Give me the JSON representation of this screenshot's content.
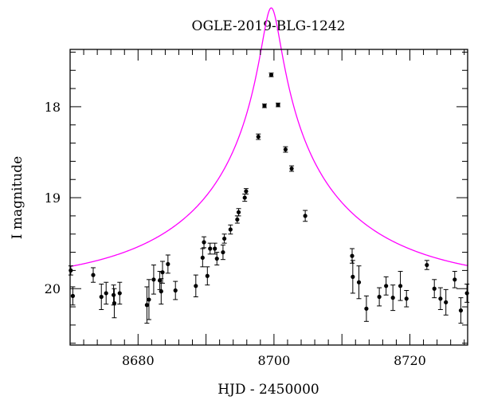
{
  "chart_data": {
    "type": "scatter",
    "title": "OGLE-2019-BLG-1242",
    "xlabel": "HJD - 2450000",
    "ylabel": "I magnitude",
    "xlim": [
      8670,
      8728.5
    ],
    "ylim": [
      20.62,
      17.37
    ],
    "y_inverted": true,
    "x_ticks": [
      8680,
      8700,
      8720
    ],
    "y_ticks": [
      18,
      19,
      20
    ],
    "grid": false,
    "legend": "none",
    "colors": {
      "points": "#000000",
      "model": "#ff00ff",
      "frame": "#000000"
    },
    "series": [
      {
        "type": "scatter_errorbar",
        "points": [
          [
            8670.1,
            19.8,
            0.05
          ],
          [
            8670.4,
            20.08,
            0.1
          ],
          [
            8673.4,
            19.85,
            0.08
          ],
          [
            8674.6,
            20.09,
            0.14
          ],
          [
            8675.3,
            20.05,
            0.12
          ],
          [
            8676.4,
            20.07,
            0.11
          ],
          [
            8676.5,
            20.16,
            0.16
          ],
          [
            8677.3,
            20.05,
            0.12
          ],
          [
            8681.3,
            20.18,
            0.2
          ],
          [
            8681.6,
            20.12,
            0.22
          ],
          [
            8682.3,
            19.9,
            0.16
          ],
          [
            8683.2,
            19.91,
            0.1
          ],
          [
            8683.4,
            20.03,
            0.14
          ],
          [
            8683.6,
            19.82,
            0.12
          ],
          [
            8684.4,
            19.73,
            0.1
          ],
          [
            8685.5,
            20.02,
            0.1
          ],
          [
            8688.5,
            19.97,
            0.12
          ],
          [
            8689.5,
            19.66,
            0.1
          ],
          [
            8689.7,
            19.49,
            0.06
          ],
          [
            8690.2,
            19.86,
            0.1
          ],
          [
            8690.6,
            19.56,
            0.06
          ],
          [
            8691.3,
            19.56,
            0.06
          ],
          [
            8691.6,
            19.67,
            0.07
          ],
          [
            8692.5,
            19.6,
            0.08
          ],
          [
            8692.7,
            19.45,
            0.05
          ],
          [
            8693.6,
            19.35,
            0.05
          ],
          [
            8694.6,
            19.24,
            0.04
          ],
          [
            8694.8,
            19.16,
            0.04
          ],
          [
            8695.7,
            19.0,
            0.04
          ],
          [
            8695.9,
            18.93,
            0.03
          ],
          [
            8697.7,
            18.33,
            0.03
          ],
          [
            8698.6,
            17.99,
            0.02
          ],
          [
            8699.6,
            17.65,
            0.02
          ],
          [
            8700.6,
            17.98,
            0.02
          ],
          [
            8701.7,
            18.47,
            0.03
          ],
          [
            8702.6,
            18.68,
            0.03
          ],
          [
            8704.6,
            19.2,
            0.06
          ],
          [
            8711.5,
            19.64,
            0.08
          ],
          [
            8711.6,
            19.87,
            0.18
          ],
          [
            8712.5,
            19.93,
            0.18
          ],
          [
            8713.6,
            20.22,
            0.14
          ],
          [
            8715.5,
            20.09,
            0.1
          ],
          [
            8716.5,
            19.97,
            0.1
          ],
          [
            8717.5,
            20.1,
            0.14
          ],
          [
            8718.6,
            19.97,
            0.16
          ],
          [
            8719.5,
            20.11,
            0.09
          ],
          [
            8722.5,
            19.74,
            0.05
          ],
          [
            8723.6,
            20.0,
            0.1
          ],
          [
            8724.5,
            20.11,
            0.12
          ],
          [
            8725.3,
            20.15,
            0.14
          ],
          [
            8726.6,
            19.9,
            0.09
          ],
          [
            8727.5,
            20.24,
            0.14
          ],
          [
            8728.4,
            20.05,
            0.1
          ]
        ]
      },
      {
        "type": "line",
        "model": "pspl",
        "params": {
          "t0": 8699.6,
          "tE": 26.0,
          "u0": 0.049,
          "base": 19.96,
          "fs": 0.8
        }
      }
    ]
  }
}
